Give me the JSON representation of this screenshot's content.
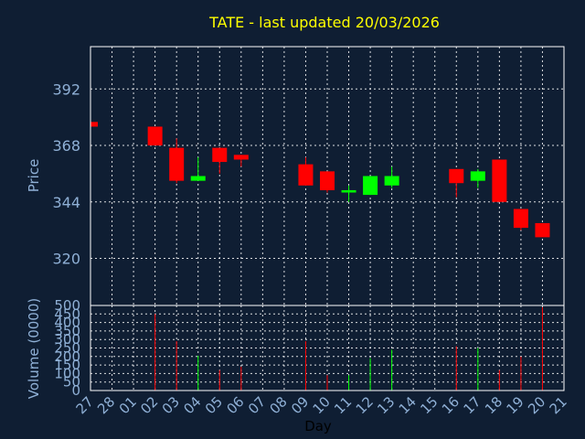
{
  "chart_data": {
    "type": "candlestick",
    "title": "TATE - last updated 20/03/2026",
    "xlabel": "Day",
    "price_panel": {
      "ylabel": "Price",
      "ylim": [
        300,
        410
      ],
      "yticks": [
        320,
        344,
        368,
        392
      ]
    },
    "volume_panel": {
      "ylabel": "Volume (0000)",
      "ylim": [
        0,
        500
      ],
      "yticks": [
        0,
        50,
        100,
        150,
        200,
        250,
        300,
        350,
        400,
        450,
        500
      ]
    },
    "categories": [
      "27",
      "28",
      "01",
      "02",
      "03",
      "04",
      "05",
      "06",
      "07",
      "08",
      "09",
      "10",
      "11",
      "12",
      "13",
      "14",
      "15",
      "16",
      "17",
      "18",
      "19",
      "20",
      "21"
    ],
    "candles": [
      {
        "day": "27",
        "open": 378,
        "close": 376,
        "high": 378,
        "low": 376,
        "volume": 0
      },
      {
        "day": "02",
        "open": 376,
        "close": 368,
        "high": 376,
        "low": 368,
        "volume": 450
      },
      {
        "day": "03",
        "open": 367,
        "close": 353,
        "high": 371,
        "low": 352,
        "volume": 290
      },
      {
        "day": "04",
        "open": 353,
        "close": 355,
        "high": 363,
        "low": 353,
        "volume": 205
      },
      {
        "day": "05",
        "open": 367,
        "close": 361,
        "high": 367,
        "low": 356,
        "volume": 120
      },
      {
        "day": "06",
        "open": 364,
        "close": 362,
        "high": 364,
        "low": 359,
        "volume": 140
      },
      {
        "day": "09",
        "open": 360,
        "close": 351,
        "high": 363,
        "low": 351,
        "volume": 290
      },
      {
        "day": "10",
        "open": 357,
        "close": 349,
        "high": 357,
        "low": 348,
        "volume": 90
      },
      {
        "day": "11",
        "open": 348,
        "close": 349,
        "high": 351,
        "low": 344,
        "volume": 90
      },
      {
        "day": "12",
        "open": 347,
        "close": 355,
        "high": 355,
        "low": 347,
        "volume": 190
      },
      {
        "day": "13",
        "open": 351,
        "close": 355,
        "high": 359,
        "low": 350,
        "volume": 240
      },
      {
        "day": "16",
        "open": 358,
        "close": 352,
        "high": 358,
        "low": 346,
        "volume": 260
      },
      {
        "day": "17",
        "open": 353,
        "close": 357,
        "high": 358,
        "low": 350,
        "volume": 250
      },
      {
        "day": "18",
        "open": 362,
        "close": 344,
        "high": 362,
        "low": 344,
        "volume": 120
      },
      {
        "day": "19",
        "open": 341,
        "close": 333,
        "high": 341,
        "low": 332,
        "volume": 200
      },
      {
        "day": "20",
        "open": 335,
        "close": 329,
        "high": 335,
        "low": 329,
        "volume": 490
      }
    ],
    "up_color": "#00ff00",
    "down_color": "#ff0000",
    "grid": true
  }
}
